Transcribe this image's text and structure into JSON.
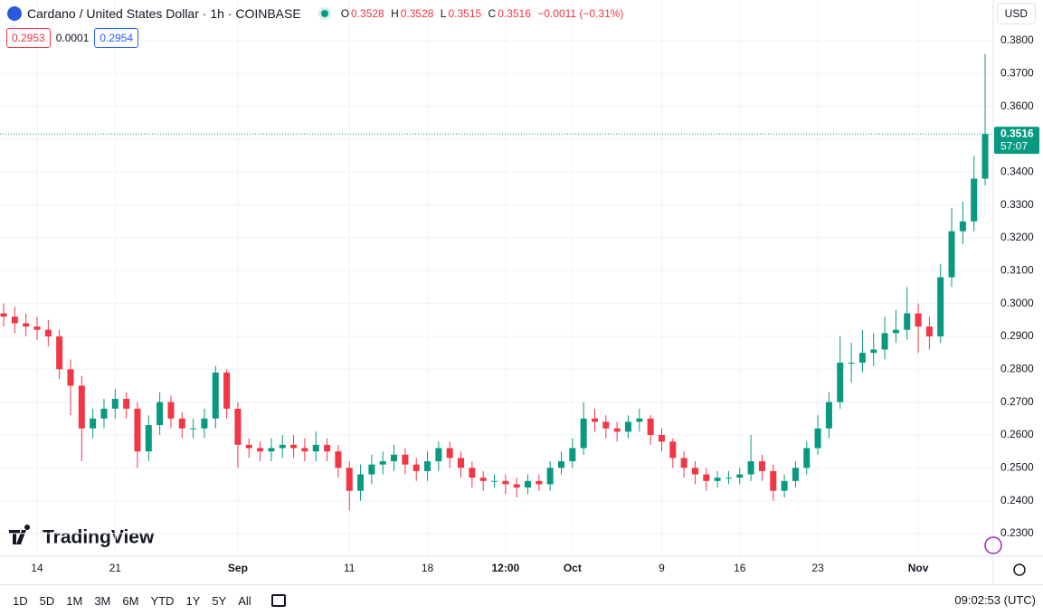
{
  "header": {
    "title": "Cardano / United States Dollar · 1h · COINBASE",
    "o_label": "O",
    "open": 0.3528,
    "h_label": "H",
    "high": 0.3528,
    "l_label": "L",
    "low": 0.3515,
    "c_label": "C",
    "close": 0.3516,
    "change": "−0.0011 (−0.31%)",
    "bid": 0.2953,
    "spread": 0.0001,
    "ask": 0.2954,
    "currency": "USD"
  },
  "toolbar": {
    "ranges": [
      "1D",
      "5D",
      "1M",
      "3M",
      "6M",
      "YTD",
      "1Y",
      "5Y",
      "All"
    ],
    "clock": "09:02:53 (UTC)",
    "brand": "TradingView"
  },
  "chart_data": {
    "type": "candlestick",
    "up_color": "#089981",
    "down_color": "#f23645",
    "grid": true,
    "countdown": "57:07",
    "ylim": [
      0.2231,
      0.391
    ],
    "yticks": [
      {
        "value": 0.23,
        "label": "0.2300"
      },
      {
        "value": 0.24,
        "label": "0.2400"
      },
      {
        "value": 0.25,
        "label": "0.2500"
      },
      {
        "value": 0.26,
        "label": "0.2600"
      },
      {
        "value": 0.27,
        "label": "0.2700"
      },
      {
        "value": 0.28,
        "label": "0.2800"
      },
      {
        "value": 0.29,
        "label": "0.2900"
      },
      {
        "value": 0.3,
        "label": "0.3000"
      },
      {
        "value": 0.31,
        "label": "0.3100"
      },
      {
        "value": 0.32,
        "label": "0.3200"
      },
      {
        "value": 0.33,
        "label": "0.3300"
      },
      {
        "value": 0.34,
        "label": "0.3400"
      },
      {
        "value": 0.35,
        "label": "0.3500"
      },
      {
        "value": 0.36,
        "label": "0.3600"
      },
      {
        "value": 0.37,
        "label": "0.3700"
      },
      {
        "value": 0.38,
        "label": "0.3800"
      }
    ],
    "categories": [
      null,
      null,
      null,
      "14",
      null,
      null,
      null,
      null,
      null,
      null,
      "21",
      null,
      null,
      null,
      null,
      null,
      null,
      null,
      null,
      null,
      null,
      "Sep",
      null,
      null,
      null,
      null,
      null,
      null,
      null,
      null,
      null,
      "11",
      null,
      null,
      null,
      null,
      null,
      null,
      "18",
      null,
      null,
      null,
      null,
      null,
      null,
      "12:00",
      null,
      null,
      null,
      null,
      null,
      "Oct",
      null,
      null,
      null,
      null,
      null,
      null,
      null,
      "9",
      null,
      null,
      null,
      null,
      null,
      null,
      "16",
      null,
      null,
      null,
      null,
      null,
      null,
      "23",
      null,
      null,
      null,
      null,
      null,
      null,
      null,
      null,
      "Nov",
      null,
      null,
      null,
      null,
      null,
      null
    ],
    "open": [
      0.297,
      0.296,
      0.294,
      0.293,
      0.292,
      0.29,
      0.28,
      0.275,
      0.262,
      0.265,
      0.268,
      0.271,
      0.268,
      0.255,
      0.263,
      0.27,
      0.265,
      0.262,
      0.262,
      0.265,
      0.279,
      0.268,
      0.257,
      0.256,
      0.255,
      0.256,
      0.257,
      0.256,
      0.255,
      0.257,
      0.255,
      0.25,
      0.243,
      0.248,
      0.251,
      0.252,
      0.254,
      0.251,
      0.249,
      0.252,
      0.256,
      0.253,
      0.25,
      0.247,
      0.246,
      0.246,
      0.245,
      0.244,
      0.246,
      0.245,
      0.25,
      0.252,
      0.256,
      0.265,
      0.264,
      0.262,
      0.261,
      0.264,
      0.265,
      0.26,
      0.258,
      0.253,
      0.25,
      0.248,
      0.246,
      0.247,
      0.247,
      0.248,
      0.252,
      0.249,
      0.243,
      0.246,
      0.25,
      0.256,
      0.262,
      0.27,
      0.282,
      0.282,
      0.285,
      0.286,
      0.291,
      0.292,
      0.297,
      0.293,
      0.29,
      0.308,
      0.322,
      0.325,
      0.338
    ],
    "high": [
      0.3,
      0.299,
      0.297,
      0.296,
      0.295,
      0.292,
      0.283,
      0.278,
      0.268,
      0.271,
      0.274,
      0.273,
      0.27,
      0.266,
      0.273,
      0.272,
      0.267,
      0.265,
      0.268,
      0.281,
      0.28,
      0.27,
      0.259,
      0.258,
      0.259,
      0.26,
      0.26,
      0.259,
      0.261,
      0.259,
      0.257,
      0.252,
      0.251,
      0.254,
      0.255,
      0.257,
      0.256,
      0.253,
      0.255,
      0.258,
      0.258,
      0.255,
      0.252,
      0.249,
      0.248,
      0.248,
      0.247,
      0.248,
      0.248,
      0.252,
      0.255,
      0.259,
      0.27,
      0.268,
      0.266,
      0.264,
      0.266,
      0.268,
      0.266,
      0.262,
      0.259,
      0.255,
      0.252,
      0.25,
      0.249,
      0.249,
      0.25,
      0.26,
      0.254,
      0.251,
      0.248,
      0.252,
      0.258,
      0.266,
      0.273,
      0.29,
      0.288,
      0.292,
      0.291,
      0.296,
      0.298,
      0.305,
      0.3,
      0.296,
      0.312,
      0.329,
      0.331,
      0.345,
      0.376
    ],
    "low": [
      0.293,
      0.291,
      0.29,
      0.289,
      0.287,
      0.277,
      0.266,
      0.252,
      0.259,
      0.262,
      0.265,
      0.265,
      0.25,
      0.252,
      0.26,
      0.262,
      0.259,
      0.259,
      0.259,
      0.262,
      0.265,
      0.25,
      0.253,
      0.252,
      0.252,
      0.253,
      0.253,
      0.252,
      0.252,
      0.252,
      0.247,
      0.237,
      0.24,
      0.245,
      0.248,
      0.249,
      0.248,
      0.246,
      0.246,
      0.249,
      0.25,
      0.247,
      0.244,
      0.243,
      0.244,
      0.242,
      0.241,
      0.242,
      0.243,
      0.243,
      0.248,
      0.25,
      0.254,
      0.261,
      0.259,
      0.258,
      0.259,
      0.261,
      0.257,
      0.255,
      0.25,
      0.247,
      0.245,
      0.243,
      0.244,
      0.245,
      0.245,
      0.246,
      0.246,
      0.24,
      0.241,
      0.244,
      0.248,
      0.254,
      0.259,
      0.268,
      0.276,
      0.279,
      0.281,
      0.283,
      0.288,
      0.289,
      0.285,
      0.286,
      0.288,
      0.305,
      0.318,
      0.322,
      0.336
    ],
    "close": [
      0.296,
      0.294,
      0.293,
      0.292,
      0.29,
      0.28,
      0.275,
      0.262,
      0.265,
      0.268,
      0.271,
      0.268,
      0.255,
      0.263,
      0.27,
      0.265,
      0.262,
      0.262,
      0.265,
      0.279,
      0.268,
      0.257,
      0.256,
      0.255,
      0.256,
      0.257,
      0.256,
      0.255,
      0.257,
      0.255,
      0.25,
      0.243,
      0.248,
      0.251,
      0.252,
      0.254,
      0.251,
      0.249,
      0.252,
      0.256,
      0.253,
      0.25,
      0.247,
      0.246,
      0.246,
      0.245,
      0.244,
      0.246,
      0.245,
      0.25,
      0.252,
      0.256,
      0.265,
      0.264,
      0.262,
      0.261,
      0.264,
      0.265,
      0.26,
      0.258,
      0.253,
      0.25,
      0.248,
      0.246,
      0.247,
      0.247,
      0.248,
      0.252,
      0.249,
      0.243,
      0.246,
      0.25,
      0.256,
      0.262,
      0.27,
      0.282,
      0.282,
      0.285,
      0.286,
      0.291,
      0.292,
      0.297,
      0.293,
      0.29,
      0.308,
      0.322,
      0.325,
      0.338,
      0.3516
    ]
  }
}
